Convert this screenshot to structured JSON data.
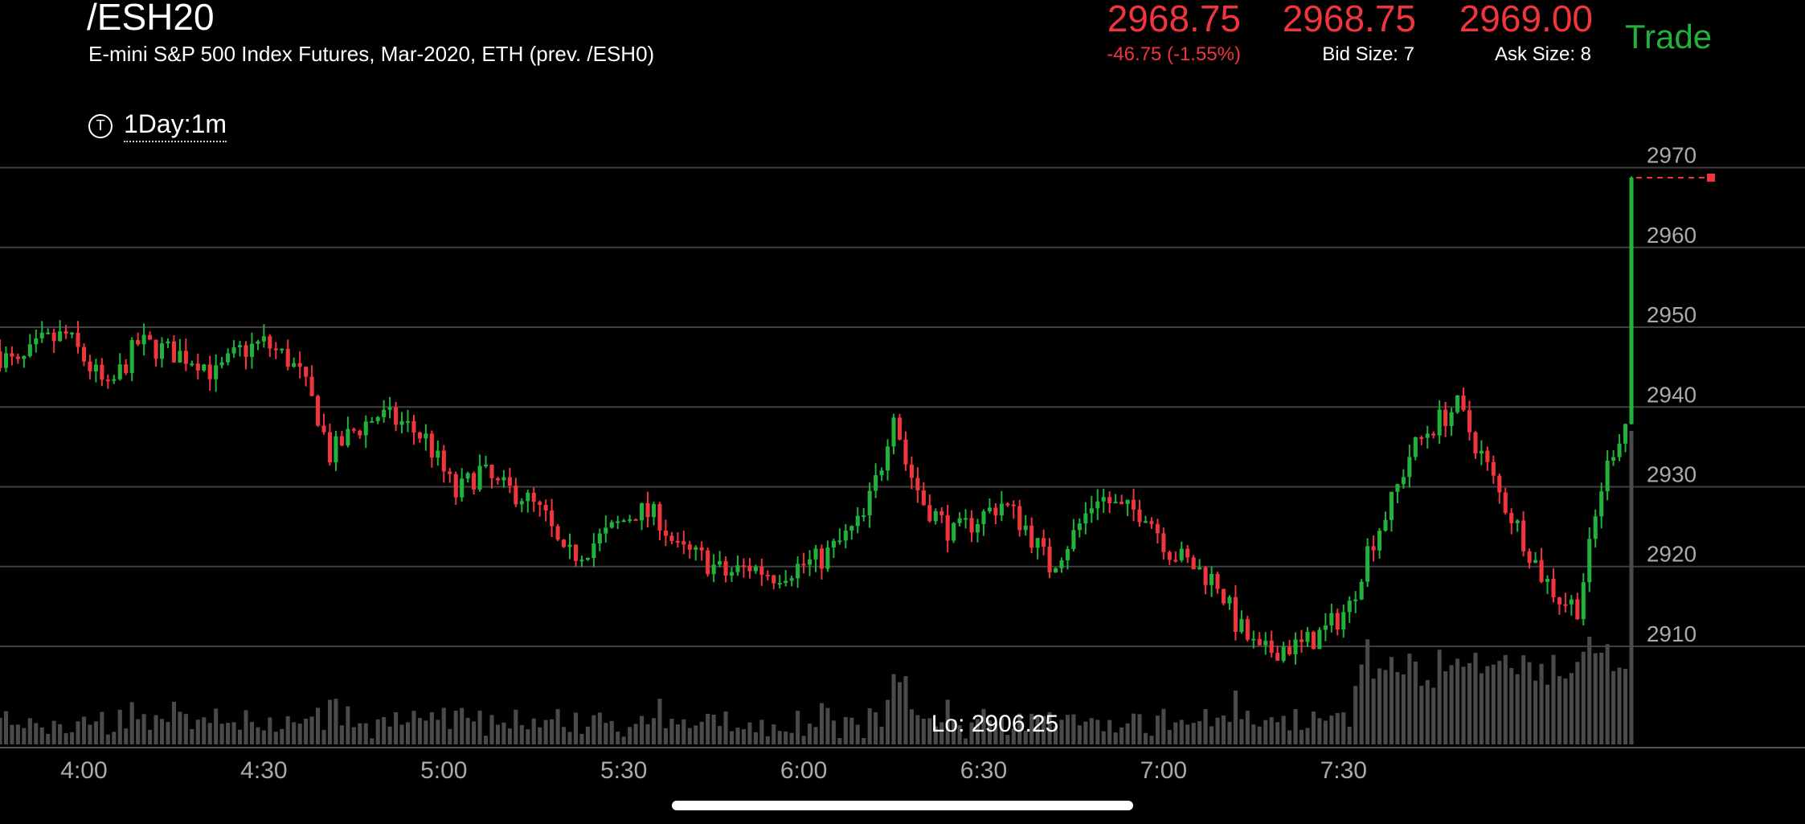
{
  "header": {
    "symbol": "/ESH20",
    "description": "E-mini S&P 500 Index Futures, Mar-2020, ETH (prev. /ESH0)",
    "last": "2968.75",
    "change": "-46.75 (-1.55%)",
    "bid": "2968.75",
    "bid_size": "Bid Size: 7",
    "ask": "2969.00",
    "ask_size": "Ask Size: 8",
    "trade_label": "Trade",
    "timeframe_icon": "T",
    "timeframe": "1Day:1m"
  },
  "colors": {
    "up": "#22b13a",
    "down": "#f0353d",
    "price_text": "#f0353d",
    "volume": "#4a4a4a",
    "grid": "#3f3f3f",
    "axis_text": "#aaaaaa"
  },
  "chart_data": {
    "type": "candlestick",
    "interval_minutes": 1,
    "y_ticks": [
      2910,
      2920,
      2930,
      2940,
      2950,
      2960,
      2970
    ],
    "ylim": [
      2897.3,
      2975.9
    ],
    "x_ticks": [
      "4:00",
      "4:30",
      "5:00",
      "5:30",
      "6:00",
      "6:30",
      "7:00",
      "7:30"
    ],
    "x_tick_minutes": [
      240,
      270,
      300,
      330,
      360,
      390,
      420,
      450
    ],
    "xlim_minutes": [
      226,
      498
    ],
    "last_price": 2968.75,
    "low_label": "Lo: 2906.25",
    "low_value": 2906.25,
    "anchors": [
      [
        226,
        2947
      ],
      [
        230,
        2945
      ],
      [
        234,
        2948
      ],
      [
        238,
        2949
      ],
      [
        242,
        2945
      ],
      [
        245,
        2942
      ],
      [
        250,
        2948
      ],
      [
        255,
        2947
      ],
      [
        260,
        2946
      ],
      [
        263,
        2944
      ],
      [
        267,
        2947
      ],
      [
        271,
        2948
      ],
      [
        275,
        2946
      ],
      [
        277,
        2944
      ],
      [
        280,
        2939
      ],
      [
        282,
        2934
      ],
      [
        286,
        2937
      ],
      [
        290,
        2939
      ],
      [
        294,
        2938
      ],
      [
        298,
        2936
      ],
      [
        303,
        2929
      ],
      [
        307,
        2932
      ],
      [
        310,
        2930
      ],
      [
        314,
        2929
      ],
      [
        318,
        2926
      ],
      [
        321,
        2921
      ],
      [
        324,
        2922
      ],
      [
        328,
        2924
      ],
      [
        333,
        2927
      ],
      [
        337,
        2926
      ],
      [
        340,
        2922
      ],
      [
        344,
        2921
      ],
      [
        348,
        2919
      ],
      [
        352,
        2920
      ],
      [
        356,
        2919
      ],
      [
        360,
        2920
      ],
      [
        364,
        2921
      ],
      [
        367,
        2923
      ],
      [
        371,
        2926
      ],
      [
        374,
        2933
      ],
      [
        376,
        2940
      ],
      [
        378,
        2933
      ],
      [
        381,
        2928
      ],
      [
        386,
        2924
      ],
      [
        390,
        2926
      ],
      [
        394,
        2928
      ],
      [
        398,
        2925
      ],
      [
        402,
        2920
      ],
      [
        406,
        2924
      ],
      [
        410,
        2929
      ],
      [
        414,
        2927
      ],
      [
        418,
        2927
      ],
      [
        422,
        2922
      ],
      [
        426,
        2920
      ],
      [
        430,
        2918
      ],
      [
        433,
        2913
      ],
      [
        437,
        2909
      ],
      [
        441,
        2910
      ],
      [
        444,
        2910
      ],
      [
        448,
        2912
      ],
      [
        452,
        2915
      ],
      [
        455,
        2922
      ],
      [
        459,
        2928
      ],
      [
        462,
        2934
      ],
      [
        465,
        2937
      ],
      [
        468,
        2939
      ],
      [
        470,
        2940
      ],
      [
        474,
        2934
      ],
      [
        477,
        2929
      ],
      [
        480,
        2925
      ],
      [
        484,
        2919
      ],
      [
        487,
        2916
      ],
      [
        490,
        2915
      ],
      [
        492,
        2922
      ],
      [
        494,
        2930
      ],
      [
        496,
        2935
      ],
      [
        498,
        2938
      ]
    ]
  }
}
